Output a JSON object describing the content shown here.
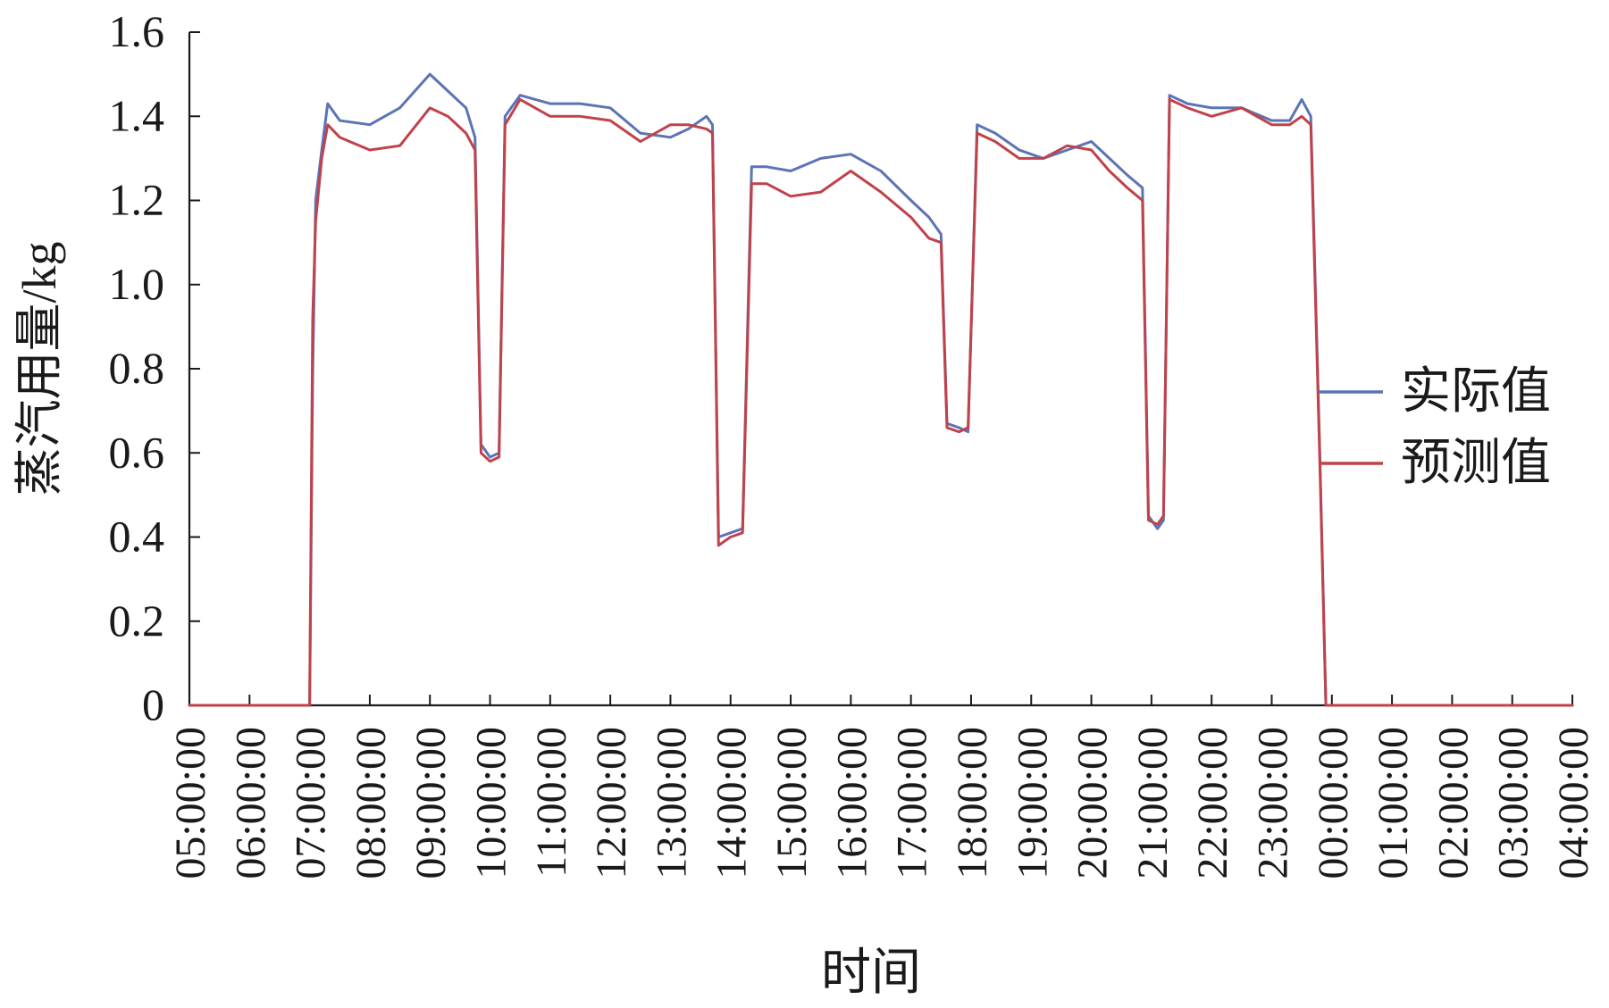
{
  "chart_data": {
    "type": "line",
    "title": "",
    "xlabel": "时间",
    "ylabel": "蒸汽用量/kg",
    "ylim": [
      0,
      1.6
    ],
    "yticks": [
      0,
      0.2,
      0.4,
      0.6,
      0.8,
      1.0,
      1.2,
      1.4,
      1.6
    ],
    "ytick_labels": [
      "0",
      "0.2",
      "0.4",
      "0.6",
      "0.8",
      "1.0",
      "1.2",
      "1.4",
      "1.6"
    ],
    "xlim_hours": [
      5,
      28
    ],
    "x_tick_labels": [
      "05:00:00",
      "06:00:00",
      "07:00:00",
      "08:00:00",
      "09:00:00",
      "10:00:00",
      "11:00:00",
      "12:00:00",
      "13:00:00",
      "14:00:00",
      "15:00:00",
      "16:00:00",
      "17:00:00",
      "18:00:00",
      "19:00:00",
      "20:00:00",
      "21:00:00",
      "22:00:00",
      "23:00:00",
      "00:00:00",
      "01:00:00",
      "02:00:00",
      "03:00:00",
      "04:00:00"
    ],
    "grid": false,
    "legend": "right",
    "series": [
      {
        "name": "实际值",
        "color": "#5b74b5",
        "points": [
          [
            5.0,
            0
          ],
          [
            7.0,
            0
          ],
          [
            7.05,
            0.78
          ],
          [
            7.1,
            1.2
          ],
          [
            7.2,
            1.32
          ],
          [
            7.3,
            1.43
          ],
          [
            7.5,
            1.39
          ],
          [
            8.0,
            1.38
          ],
          [
            8.5,
            1.42
          ],
          [
            9.0,
            1.5
          ],
          [
            9.3,
            1.46
          ],
          [
            9.6,
            1.42
          ],
          [
            9.75,
            1.35
          ],
          [
            9.85,
            0.62
          ],
          [
            10.0,
            0.59
          ],
          [
            10.15,
            0.6
          ],
          [
            10.25,
            1.4
          ],
          [
            10.5,
            1.45
          ],
          [
            11.0,
            1.43
          ],
          [
            11.5,
            1.43
          ],
          [
            12.0,
            1.42
          ],
          [
            12.5,
            1.36
          ],
          [
            13.0,
            1.35
          ],
          [
            13.3,
            1.37
          ],
          [
            13.6,
            1.4
          ],
          [
            13.7,
            1.38
          ],
          [
            13.8,
            0.4
          ],
          [
            14.0,
            0.41
          ],
          [
            14.2,
            0.42
          ],
          [
            14.35,
            1.28
          ],
          [
            14.6,
            1.28
          ],
          [
            15.0,
            1.27
          ],
          [
            15.5,
            1.3
          ],
          [
            16.0,
            1.31
          ],
          [
            16.5,
            1.27
          ],
          [
            17.0,
            1.2
          ],
          [
            17.3,
            1.16
          ],
          [
            17.5,
            1.12
          ],
          [
            17.6,
            0.67
          ],
          [
            17.8,
            0.66
          ],
          [
            17.95,
            0.65
          ],
          [
            18.1,
            1.38
          ],
          [
            18.4,
            1.36
          ],
          [
            18.8,
            1.32
          ],
          [
            19.2,
            1.3
          ],
          [
            19.6,
            1.32
          ],
          [
            20.0,
            1.34
          ],
          [
            20.3,
            1.3
          ],
          [
            20.6,
            1.26
          ],
          [
            20.85,
            1.23
          ],
          [
            20.95,
            0.45
          ],
          [
            21.1,
            0.42
          ],
          [
            21.2,
            0.44
          ],
          [
            21.3,
            1.45
          ],
          [
            21.6,
            1.43
          ],
          [
            22.0,
            1.42
          ],
          [
            22.5,
            1.42
          ],
          [
            23.0,
            1.39
          ],
          [
            23.3,
            1.39
          ],
          [
            23.5,
            1.44
          ],
          [
            23.65,
            1.4
          ],
          [
            23.8,
            0.6
          ],
          [
            23.9,
            0
          ],
          [
            28.0,
            0
          ]
        ]
      },
      {
        "name": "预测值",
        "color": "#c0424a",
        "points": [
          [
            5.0,
            0
          ],
          [
            7.0,
            0
          ],
          [
            7.05,
            0.92
          ],
          [
            7.1,
            1.15
          ],
          [
            7.2,
            1.3
          ],
          [
            7.3,
            1.38
          ],
          [
            7.5,
            1.35
          ],
          [
            8.0,
            1.32
          ],
          [
            8.5,
            1.33
          ],
          [
            9.0,
            1.42
          ],
          [
            9.3,
            1.4
          ],
          [
            9.6,
            1.36
          ],
          [
            9.75,
            1.32
          ],
          [
            9.85,
            0.6
          ],
          [
            10.0,
            0.58
          ],
          [
            10.15,
            0.59
          ],
          [
            10.25,
            1.38
          ],
          [
            10.5,
            1.44
          ],
          [
            11.0,
            1.4
          ],
          [
            11.5,
            1.4
          ],
          [
            12.0,
            1.39
          ],
          [
            12.5,
            1.34
          ],
          [
            13.0,
            1.38
          ],
          [
            13.3,
            1.38
          ],
          [
            13.6,
            1.37
          ],
          [
            13.7,
            1.36
          ],
          [
            13.8,
            0.38
          ],
          [
            14.0,
            0.4
          ],
          [
            14.2,
            0.41
          ],
          [
            14.35,
            1.24
          ],
          [
            14.6,
            1.24
          ],
          [
            15.0,
            1.21
          ],
          [
            15.5,
            1.22
          ],
          [
            16.0,
            1.27
          ],
          [
            16.5,
            1.22
          ],
          [
            17.0,
            1.16
          ],
          [
            17.3,
            1.11
          ],
          [
            17.5,
            1.1
          ],
          [
            17.6,
            0.66
          ],
          [
            17.8,
            0.65
          ],
          [
            17.95,
            0.66
          ],
          [
            18.1,
            1.36
          ],
          [
            18.4,
            1.34
          ],
          [
            18.8,
            1.3
          ],
          [
            19.2,
            1.3
          ],
          [
            19.6,
            1.33
          ],
          [
            20.0,
            1.32
          ],
          [
            20.3,
            1.27
          ],
          [
            20.6,
            1.23
          ],
          [
            20.85,
            1.2
          ],
          [
            20.95,
            0.44
          ],
          [
            21.1,
            0.43
          ],
          [
            21.2,
            0.45
          ],
          [
            21.3,
            1.44
          ],
          [
            21.6,
            1.42
          ],
          [
            22.0,
            1.4
          ],
          [
            22.5,
            1.42
          ],
          [
            23.0,
            1.38
          ],
          [
            23.3,
            1.38
          ],
          [
            23.5,
            1.4
          ],
          [
            23.65,
            1.38
          ],
          [
            23.8,
            0.58
          ],
          [
            23.9,
            0
          ],
          [
            28.0,
            0
          ]
        ]
      }
    ]
  }
}
